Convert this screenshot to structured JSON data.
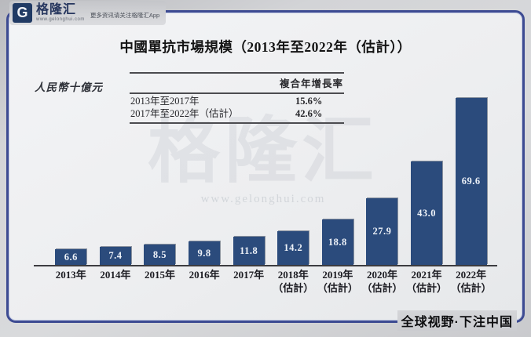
{
  "brand": {
    "logo_text": "格隆汇",
    "logo_sub": "www.gelonghui.com",
    "logo_tagline": "更多资讯请关注格隆汇App",
    "watermark": "格隆汇",
    "watermark_sub": "www.gelonghui.com",
    "footer_slogan": "全球视野·下注中国"
  },
  "colors": {
    "bar": "#2b4b7c",
    "frame_border": "#3d4b92",
    "inner_background": "#eef0f1",
    "outer_background": "#c9cacd",
    "logo_navy": "#203a64"
  },
  "chart_data": {
    "type": "bar",
    "title": "中國單抗市場規模（2013年至2022年（估計））",
    "ylabel": "人民幣十億元",
    "xlabel": "",
    "ylim": [
      0,
      70
    ],
    "grid": false,
    "legend": null,
    "categories": [
      "2013年",
      "2014年",
      "2015年",
      "2016年",
      "2017年",
      "2018年（估計）",
      "2019年（估計）",
      "2020年（估計）",
      "2021年（估計）",
      "2022年（估計）"
    ],
    "values": [
      6.6,
      7.4,
      8.5,
      9.8,
      11.8,
      14.2,
      18.8,
      27.9,
      43.0,
      69.6
    ],
    "annotations": {
      "cagr_header": "複合年增長率",
      "cagr_rows": [
        {
          "label": "2013年至2017年",
          "value": "15.6%"
        },
        {
          "label": "2017年至2022年（估計）",
          "value": "42.6%"
        }
      ]
    }
  }
}
